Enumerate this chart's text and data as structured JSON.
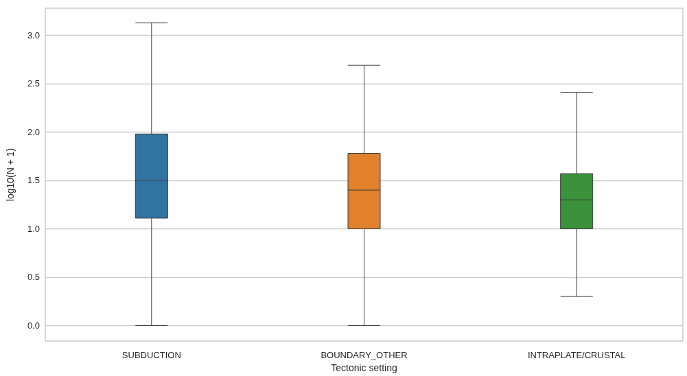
{
  "chart_data": {
    "type": "box",
    "xlabel": "Tectonic setting",
    "ylabel": "log10(N + 1)",
    "categories": [
      "SUBDUCTION",
      "BOUNDARY_OTHER",
      "INTRAPLATE/CRUSTAL"
    ],
    "series": [
      {
        "colors": [
          "#3274a1",
          "#e1812c",
          "#3a923a"
        ],
        "boxes": [
          {
            "low": 0,
            "q1": 1.11,
            "median": 1.5,
            "q3": 1.98,
            "high": 3.13
          },
          {
            "low": 0,
            "q1": 1.0,
            "median": 1.4,
            "q3": 1.78,
            "high": 2.69
          },
          {
            "low": 0.3,
            "q1": 1.0,
            "median": 1.3,
            "q3": 1.57,
            "high": 2.41
          }
        ]
      }
    ],
    "ylim": [
      -0.16,
      3.28
    ],
    "yticks": [
      {
        "value": 0,
        "label": "0.0"
      },
      0.5,
      {
        "value": 1,
        "label": "1.0"
      },
      1.5,
      {
        "value": 2,
        "label": "2.0"
      },
      2.5,
      {
        "value": 3,
        "label": "3.0"
      }
    ],
    "grid": "y"
  }
}
